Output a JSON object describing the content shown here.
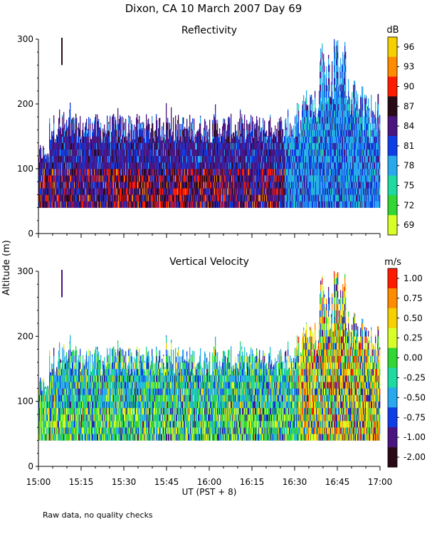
{
  "figure": {
    "title": "Dixon, CA 10 March 2007  Day  69",
    "shared_ylabel": "Altitude (m)",
    "xlabel": "UT  (PST + 8)",
    "footnote": "Raw data, no quality checks"
  },
  "chart_data": [
    {
      "type": "heatmap",
      "title": "Reflectivity",
      "x_tick_labels": [
        "15:00",
        "15:15",
        "15:30",
        "15:45",
        "16:00",
        "16:15",
        "16:30",
        "16:45",
        "17:00"
      ],
      "xlim": [
        "15:00",
        "17:00"
      ],
      "ylabel": "Altitude (m)",
      "ylim": [
        0,
        300
      ],
      "y_ticks": [
        0,
        100,
        200,
        300
      ],
      "colorbar": {
        "unit": "dB",
        "tick_labels": [
          "96",
          "93",
          "90",
          "87",
          "84",
          "81",
          "78",
          "75",
          "72",
          "69"
        ],
        "colors": [
          "#f6d000",
          "#ff8c00",
          "#ff1a00",
          "#2b0a18",
          "#4a1580",
          "#0d3ee6",
          "#29a8ee",
          "#1ed9a0",
          "#33d633",
          "#d8ff2a"
        ],
        "range": [
          69,
          99
        ]
      },
      "data_summary": {
        "lowest_range_gate_m": 40,
        "typical_echo_top_m": 180,
        "max_echo_top_m": 300,
        "max_echo_top_time": "16:47",
        "note": "Strongest returns (87-93 dB) below ~100 m around 15:30-16:00; weaker 78-84 dB echoes rising to 300 m after 16:35"
      }
    },
    {
      "type": "heatmap",
      "title": "Vertical Velocity",
      "x_tick_labels": [
        "15:00",
        "15:15",
        "15:30",
        "15:45",
        "16:00",
        "16:15",
        "16:30",
        "16:45",
        "17:00"
      ],
      "xlim": [
        "15:00",
        "17:00"
      ],
      "ylabel": "Altitude (m)",
      "ylim": [
        0,
        300
      ],
      "y_ticks": [
        0,
        100,
        200,
        300
      ],
      "colorbar": {
        "unit": "m/s",
        "tick_labels": [
          "1.00",
          "0.75",
          "0.50",
          "0.25",
          "0.00",
          "-0.25",
          "-0.50",
          "-0.75",
          "-1.00",
          "-2.00"
        ],
        "colors": [
          "#ff1a00",
          "#ff8c00",
          "#f6d000",
          "#d8ff2a",
          "#33d633",
          "#1ed9a0",
          "#29a8ee",
          "#0d3ee6",
          "#4a1580",
          "#2b0a18"
        ]
      },
      "data_summary": {
        "lowest_range_gate_m": 40,
        "typical_echo_top_m": 180,
        "max_echo_top_m": 300,
        "note": "Mostly -0.5 to +0.25 m/s below 180 m; mixed up/downdrafts up to 300 m after 16:35"
      }
    }
  ]
}
